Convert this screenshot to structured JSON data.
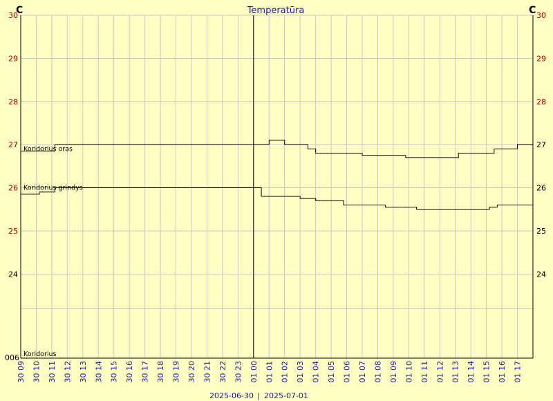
{
  "chart_data": {
    "type": "line",
    "title": "Temperatūra",
    "unit_left": "C",
    "unit_right": "C",
    "ylim": [
      22.05,
      30
    ],
    "y_ticks_left": [
      {
        "value": 30,
        "label": "30",
        "color": "#b00000"
      },
      {
        "value": 29,
        "label": "29",
        "color": "#b00000"
      },
      {
        "value": 28,
        "label": "28",
        "color": "#b00000"
      },
      {
        "value": 27,
        "label": "27",
        "color": "#b00000"
      },
      {
        "value": 26,
        "label": "26",
        "color": "#b00000"
      },
      {
        "value": 25,
        "label": "25",
        "color": "#b00000"
      },
      {
        "value": 24,
        "label": "24",
        "color": "#000000"
      }
    ],
    "y_ticks_right": [
      {
        "value": 30,
        "label": "30",
        "color": "#b00000"
      },
      {
        "value": 29,
        "label": "29",
        "color": "#b00000"
      },
      {
        "value": 28,
        "label": "28",
        "color": "#b00000"
      },
      {
        "value": 27,
        "label": "27",
        "color": "#000000"
      },
      {
        "value": 26,
        "label": "26",
        "color": "#000000"
      },
      {
        "value": 25,
        "label": "25",
        "color": "#000000"
      },
      {
        "value": 24,
        "label": "24",
        "color": "#000000"
      }
    ],
    "bottom_label": {
      "value": 22.05,
      "label": "006"
    },
    "hlines": [
      23.2
    ],
    "x_tick_labels": [
      "30 09",
      "30 10",
      "30 11",
      "30 12",
      "30 13",
      "30 14",
      "30 15",
      "30 16",
      "30 17",
      "30 18",
      "30 19",
      "30 20",
      "30 21",
      "30 22",
      "30 23",
      "01 00",
      "01 01",
      "01 02",
      "01 03",
      "01 04",
      "01 05",
      "01 06",
      "01 07",
      "01 08",
      "01 09",
      "01 10",
      "01 11",
      "01 12",
      "01 13",
      "01 14",
      "01 15",
      "01 16",
      "01 17"
    ],
    "x_range_hours": [
      0,
      33
    ],
    "date_divider_hour": 15,
    "date_left": "2025-06-30",
    "date_right": "2025-07-01",
    "date_separator": "|",
    "series": [
      {
        "name": "Koridorius oras",
        "label_value": 26.9,
        "step_points": [
          [
            0,
            26.85
          ],
          [
            1.2,
            26.85
          ],
          [
            2.2,
            27.0
          ],
          [
            15.0,
            27.0
          ],
          [
            16.0,
            27.1
          ],
          [
            17.0,
            27.0
          ],
          [
            18.5,
            26.9
          ],
          [
            19.0,
            26.8
          ],
          [
            22.0,
            26.75
          ],
          [
            24.8,
            26.7
          ],
          [
            28.2,
            26.8
          ],
          [
            30.5,
            26.9
          ],
          [
            32.0,
            27.0
          ],
          [
            33.0,
            27.0
          ]
        ]
      },
      {
        "name": "Koridorius grindys",
        "label_value": 26.0,
        "step_points": [
          [
            0,
            25.85
          ],
          [
            1.2,
            25.9
          ],
          [
            2.2,
            26.0
          ],
          [
            15.0,
            26.0
          ],
          [
            15.5,
            25.8
          ],
          [
            18.0,
            25.75
          ],
          [
            19.0,
            25.7
          ],
          [
            20.8,
            25.6
          ],
          [
            23.5,
            25.55
          ],
          [
            25.5,
            25.5
          ],
          [
            30.2,
            25.55
          ],
          [
            30.7,
            25.6
          ],
          [
            33.0,
            25.6
          ]
        ]
      },
      {
        "name": "Koridorius",
        "label_value": 22.15,
        "step_points": []
      }
    ]
  }
}
